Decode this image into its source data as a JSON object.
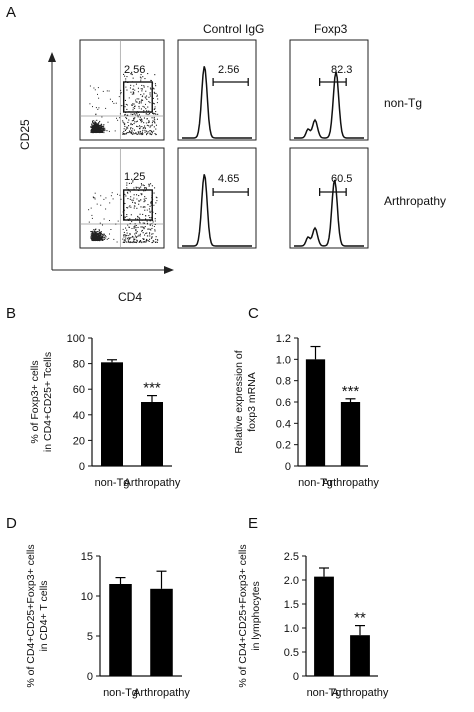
{
  "panel_a": {
    "letter": "A",
    "column_headers": [
      "Control IgG",
      "Foxp3"
    ],
    "row_labels": [
      "non-Tg",
      "Arthropathy"
    ],
    "xaxis_label": "CD4",
    "yaxis_label": "CD25",
    "gate_values": [
      "2.56",
      "1.25"
    ],
    "histograms": [
      {
        "row": "non-Tg",
        "column": "Control IgG",
        "value": "2.56"
      },
      {
        "row": "non-Tg",
        "column": "Foxp3",
        "value": "82.3"
      },
      {
        "row": "Arthropathy",
        "column": "Control IgG",
        "value": "4.65"
      },
      {
        "row": "Arthropathy",
        "column": "Foxp3",
        "value": "60.5"
      }
    ]
  },
  "chart_data": [
    {
      "id": "B",
      "letter": "B",
      "type": "bar",
      "categories": [
        "non-Tg",
        "Arthropathy"
      ],
      "values": [
        81,
        50
      ],
      "errors": [
        2,
        5
      ],
      "ylabel": "% of Foxp3+ cells in CD4+CD25+ Tcells",
      "ylim": [
        0,
        100
      ],
      "yticks": [
        "0",
        "20",
        "40",
        "60",
        "80",
        "100"
      ],
      "significance": "***"
    },
    {
      "id": "C",
      "letter": "C",
      "type": "bar",
      "categories": [
        "non-Tg",
        "Arthropathy"
      ],
      "values": [
        1.0,
        0.6
      ],
      "errors": [
        0.12,
        0.03
      ],
      "ylabel": "Relative expression of foxp3 mRNA",
      "ylim": [
        0,
        1.2
      ],
      "yticks": [
        "0",
        "0.2",
        "0.4",
        "0.6",
        "0.8",
        "1.0",
        "1.2"
      ],
      "significance": "***"
    },
    {
      "id": "D",
      "letter": "D",
      "type": "bar",
      "categories": [
        "non-Tg",
        "Arthropathy"
      ],
      "values": [
        11.5,
        10.9
      ],
      "errors": [
        0.8,
        2.2
      ],
      "ylabel": "% of CD4+CD25+Foxp3+ cells in CD4+ T cells",
      "ylim": [
        0,
        15
      ],
      "yticks": [
        "0",
        "5",
        "10",
        "15"
      ],
      "significance": ""
    },
    {
      "id": "E",
      "letter": "E",
      "type": "bar",
      "categories": [
        "non-Tg",
        "Arthropathy"
      ],
      "values": [
        2.07,
        0.85
      ],
      "errors": [
        0.18,
        0.2
      ],
      "ylabel": "% of CD4+CD25+Foxp3+ cells in lymphocytes",
      "ylim": [
        0,
        2.5
      ],
      "yticks": [
        "0",
        "0.5",
        "1.0",
        "1.5",
        "2.0",
        "2.5"
      ],
      "significance": "**"
    }
  ]
}
